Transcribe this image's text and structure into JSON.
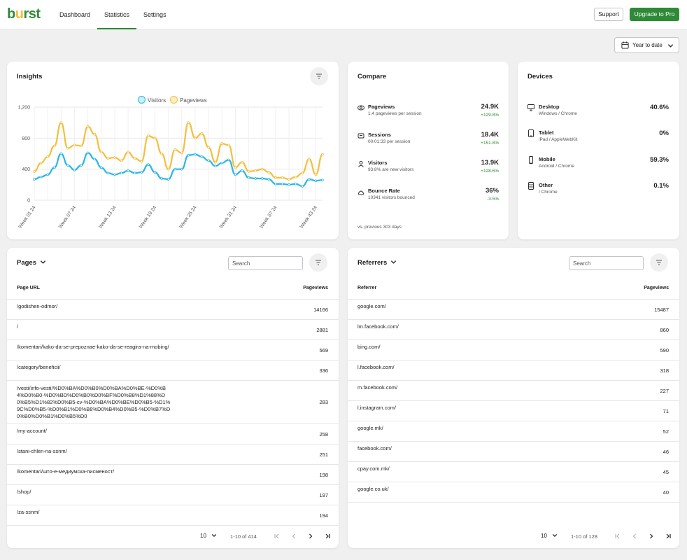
{
  "header": {
    "logo": "burst",
    "nav": [
      {
        "label": "Dashboard",
        "active": false
      },
      {
        "label": "Statistics",
        "active": true
      },
      {
        "label": "Settings",
        "active": false
      }
    ],
    "support_label": "Support",
    "upgrade_label": "Upgrade to Pro",
    "accent": "#2e8a37"
  },
  "date_range": {
    "label": "Year to date"
  },
  "insights": {
    "title": "Insights",
    "legend": [
      "Visitors",
      "Pageviews"
    ],
    "colors": {
      "visitors": "#29b6e8",
      "pageviews": "#f4bf3e"
    }
  },
  "chart_data": {
    "type": "line",
    "y_ticks": [
      "0",
      "400",
      "800",
      "1,200"
    ],
    "ylim": [
      0,
      1200
    ],
    "x_tick_labels": [
      "Week 01 24",
      "Week 07 24",
      "Week 13 24",
      "Week 19 24",
      "Week 25 24",
      "Week 31 24",
      "Week 37 24",
      "Week 43 24"
    ],
    "x_tick_index": [
      0,
      6,
      12,
      18,
      24,
      30,
      36,
      42
    ],
    "grid": true,
    "legend_position": "top",
    "series": [
      {
        "name": "Visitors",
        "values": [
          270,
          300,
          330,
          420,
          600,
          450,
          390,
          450,
          610,
          530,
          420,
          350,
          330,
          350,
          380,
          350,
          360,
          460,
          360,
          280,
          270,
          400,
          400,
          580,
          590,
          560,
          510,
          440,
          480,
          520,
          330,
          380,
          290,
          280,
          280,
          270,
          210,
          210,
          200,
          210,
          180,
          270,
          250,
          260
        ]
      },
      {
        "name": "Pageviews",
        "values": [
          370,
          480,
          560,
          700,
          1000,
          670,
          710,
          700,
          950,
          850,
          620,
          540,
          550,
          510,
          620,
          540,
          500,
          830,
          800,
          600,
          400,
          650,
          610,
          1000,
          800,
          860,
          680,
          490,
          730,
          710,
          420,
          490,
          370,
          380,
          400,
          360,
          290,
          290,
          270,
          300,
          350,
          530,
          330,
          590
        ]
      }
    ]
  },
  "compare": {
    "title": "Compare",
    "metrics": [
      {
        "label": "Pageviews",
        "sub": "1.4 pageviews per session",
        "value": "24.9K",
        "change": "+129.8%",
        "icon": "eye-icon"
      },
      {
        "label": "Sessions",
        "sub": "00:01:33 per session",
        "value": "18.4K",
        "change": "+151.8%",
        "icon": "sessions-icon"
      },
      {
        "label": "Visitors",
        "sub": "93.8% are new visitors",
        "value": "13.9K",
        "change": "+128.6%",
        "icon": "user-icon"
      },
      {
        "label": "Bounce Rate",
        "sub": "10341 visitors bounced",
        "value": "36%",
        "change": "-3.5%",
        "icon": "bounce-icon"
      }
    ],
    "footer": "vs. previous 303 days"
  },
  "devices": {
    "title": "Devices",
    "items": [
      {
        "label": "Desktop",
        "sub": "Windows / Chrome",
        "value": "40.6%",
        "icon": "desktop-icon"
      },
      {
        "label": "Tablet",
        "sub": "iPad / AppleWebKit",
        "value": "0%",
        "icon": "tablet-icon"
      },
      {
        "label": "Mobile",
        "sub": "Android / Chrome",
        "value": "59.3%",
        "icon": "mobile-icon"
      },
      {
        "label": "Other",
        "sub": "/ Chrome",
        "value": "0.1%",
        "icon": "other-icon"
      }
    ]
  },
  "pages": {
    "title": "Pages",
    "search_placeholder": "Search",
    "col_left": "Page URL",
    "col_right": "Pageviews",
    "rows": [
      {
        "url": "/godishen-odmor/",
        "views": "14166"
      },
      {
        "url": "/",
        "views": "2881"
      },
      {
        "url": "/komentari/kako-da-se-prepoznae-kako-da-se-reagira-na-mobing/",
        "views": "569"
      },
      {
        "url": "/category/beneficii/",
        "views": "336"
      },
      {
        "url": "/vesti/info-vesti/%D0%BA%D0%B0%D0%BA%D0%BE-%D0%B4%D0%B0-%D0%BD%D0%B0%D0%BF%D0%B8%D1%88%D0%B5%D1%82%D0%B5-cv-%D0%BA%D0%BE%D0%B5-%D1%9C%D0%B5-%D0%B1%D0%B8%D0%B4%D0%B5-%D0%B7%D0%B0%D0%B1%D0%B5%D0",
        "views": "283"
      },
      {
        "url": "/my-account/",
        "views": "258"
      },
      {
        "url": "/stani-chlen-na-ssnm/",
        "views": "251"
      },
      {
        "url": "/komentari/што-е-медиумска-писменост/",
        "views": "198"
      },
      {
        "url": "/shop/",
        "views": "197"
      },
      {
        "url": "/za-ssnm/",
        "views": "194"
      }
    ],
    "pager": {
      "per_page": "10",
      "range": "1-10 of 414"
    }
  },
  "referrers": {
    "title": "Referrers",
    "search_placeholder": "Search",
    "col_left": "Referrer",
    "col_right": "Pageviews",
    "rows": [
      {
        "url": "google.com/",
        "views": "15487"
      },
      {
        "url": "lm.facebook.com/",
        "views": "860"
      },
      {
        "url": "bing.com/",
        "views": "590"
      },
      {
        "url": "l.facebook.com/",
        "views": "318"
      },
      {
        "url": "m.facebook.com/",
        "views": "227"
      },
      {
        "url": "l.instagram.com/",
        "views": "71"
      },
      {
        "url": "google.mk/",
        "views": "52"
      },
      {
        "url": "facebook.com/",
        "views": "46"
      },
      {
        "url": "cpay.com.mk/",
        "views": "45"
      },
      {
        "url": "google.co.uk/",
        "views": "40"
      }
    ],
    "pager": {
      "per_page": "10",
      "range": "1-10 of 128"
    }
  }
}
